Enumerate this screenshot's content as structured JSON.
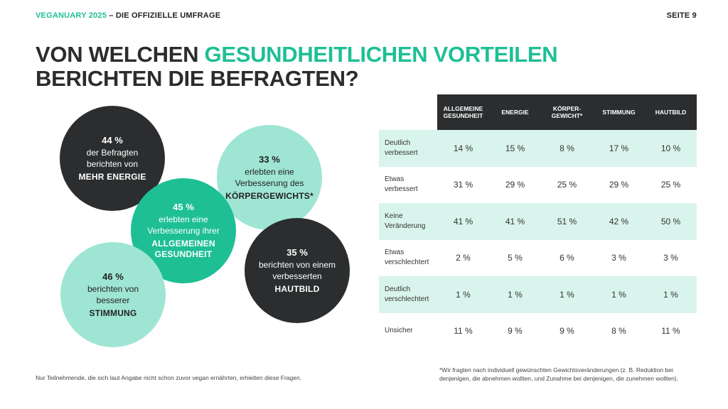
{
  "header": {
    "brand": "VEGANUARY 2025",
    "subtitle": " – DIE OFFIZIELLE UMFRAGE",
    "page": "SEITE 9"
  },
  "title": {
    "line1_pre": "VON WELCHEN ",
    "line1_accent": "GESUNDHEITLICHEN VORTEILEN",
    "line2": "BERICHTEN DIE BEFRAGTEN?"
  },
  "bubbles": {
    "energie": {
      "pct": "44 %",
      "text": "der Befragten berichten von",
      "highlight": "MEHR ENERGIE"
    },
    "koerper": {
      "pct": "33 %",
      "text": "erlebten eine Verbesserung des",
      "highlight": "KÖRPERGEWICHTS*"
    },
    "gesundheit": {
      "pct": "45 %",
      "text": "erlebten eine Verbesserung ihrer",
      "highlight": "ALLGEMEINEN GESUNDHEIT"
    },
    "hautbild": {
      "pct": "35 %",
      "text": "berichten von einem verbesserten",
      "highlight": "HAUTBILD"
    },
    "stimmung": {
      "pct": "46 %",
      "text": "berichten von besserer",
      "highlight": "STIMMUNG"
    }
  },
  "table": {
    "headers": [
      "ALLGEMEINE GESUNDHEIT",
      "ENERGIE",
      "KÖRPER-GEWICHT*",
      "STIMMUNG",
      "HAUTBILD"
    ],
    "rows": [
      {
        "label": "Deutlich verbessert",
        "values": [
          "14 %",
          "15 %",
          "8 %",
          "17 %",
          "10 %"
        ]
      },
      {
        "label": "Etwas verbessert",
        "values": [
          "31 %",
          "29 %",
          "25 %",
          "29 %",
          "25 %"
        ]
      },
      {
        "label": "Keine Veränderung",
        "values": [
          "41 %",
          "41 %",
          "51 %",
          "42 %",
          "50 %"
        ]
      },
      {
        "label": "Etwas verschlechtert",
        "values": [
          "2 %",
          "5 %",
          "6 %",
          "3 %",
          "3 %"
        ]
      },
      {
        "label": "Deutlich verschlechtert",
        "values": [
          "1 %",
          "1 %",
          "1 %",
          "1 %",
          "1 %"
        ]
      },
      {
        "label": "Unsicher",
        "values": [
          "11 %",
          "9 %",
          "9 %",
          "8 %",
          "11 %"
        ]
      }
    ]
  },
  "footnotes": {
    "left": "Nur Teilnehmende, die sich laut Angabe nicht schon zuvor vegan ernährten, erhielten diese Fragen.",
    "right": "*Wir fragten nach individuell gewünschten Gewichtsveränderungen (z. B. Reduktion bei denjenigen, die abnehmen wollten, und Zunahme bei denjenigen, die zunehmen wollten)."
  },
  "colors": {
    "accent": "#1ebf95",
    "dark": "#2b2d2f",
    "mint": "#9fe5d3",
    "row_shade": "#d9f4ec"
  }
}
